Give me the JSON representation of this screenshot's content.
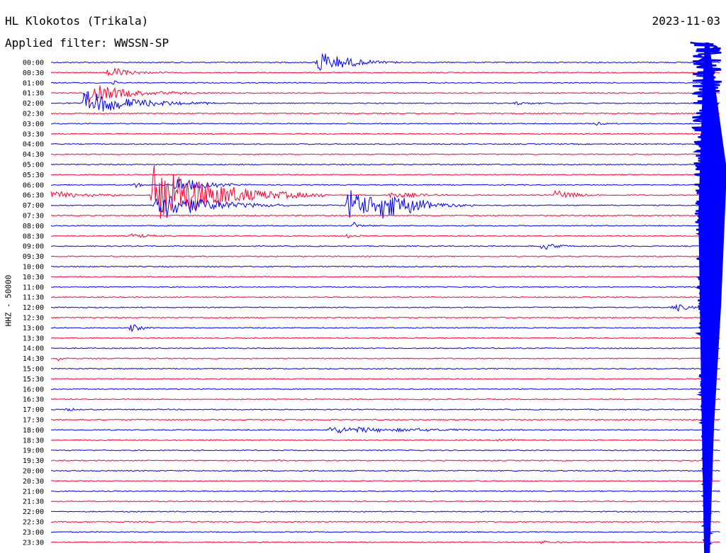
{
  "header": {
    "station": "HL Klokotos (Trikala)",
    "filter": "Applied filter: WWSSN-SP",
    "date": "2023-11-03"
  },
  "colors": {
    "trace_a": "#0000ff",
    "trace_b": "#ff0033",
    "text": "#000000"
  },
  "chart_data": {
    "type": "line",
    "title": "HL Klokotos (Trikala)",
    "subtitle": "Applied filter: WWSSN-SP",
    "ylabel": "HHZ - 50000",
    "xlabel": "",
    "grid": false,
    "legend": "none",
    "row_labels": [
      "00:00",
      "00:30",
      "01:00",
      "01:30",
      "02:00",
      "02:30",
      "03:00",
      "03:30",
      "04:00",
      "04:30",
      "05:00",
      "05:30",
      "06:00",
      "06:30",
      "07:00",
      "07:30",
      "08:00",
      "08:30",
      "09:00",
      "09:30",
      "10:00",
      "10:30",
      "11:00",
      "11:30",
      "12:00",
      "12:30",
      "13:00",
      "13:30",
      "14:00",
      "14:30",
      "15:00",
      "15:30",
      "16:00",
      "16:30",
      "17:00",
      "17:30",
      "18:00",
      "18:30",
      "19:00",
      "19:30",
      "20:00",
      "20:30",
      "21:00",
      "21:30",
      "22:00",
      "22:30",
      "23:00",
      "23:30"
    ],
    "events": [
      {
        "row": 0,
        "minute": 12.0,
        "amp": 18,
        "dur": 1.2
      },
      {
        "row": 1,
        "minute": 2.6,
        "amp": 7,
        "dur": 1.0
      },
      {
        "row": 2,
        "minute": 2.8,
        "amp": 3,
        "dur": 0.4
      },
      {
        "row": 3,
        "minute": 1.6,
        "amp": 14,
        "dur": 1.8
      },
      {
        "row": 4,
        "minute": 1.5,
        "amp": 18,
        "dur": 2.0
      },
      {
        "row": 4,
        "minute": 20.8,
        "amp": 3,
        "dur": 0.6
      },
      {
        "row": 6,
        "minute": 24.4,
        "amp": 3,
        "dur": 0.3
      },
      {
        "row": 12,
        "minute": 3.8,
        "amp": 4,
        "dur": 0.3
      },
      {
        "row": 12,
        "minute": 5.6,
        "amp": 12,
        "dur": 1.2
      },
      {
        "row": 13,
        "minute": 0.0,
        "amp": 6,
        "dur": 1.6
      },
      {
        "row": 13,
        "minute": 4.6,
        "amp": 44,
        "dur": 2.6
      },
      {
        "row": 13,
        "minute": 15.2,
        "amp": 5,
        "dur": 1.2
      },
      {
        "row": 13,
        "minute": 22.6,
        "amp": 7,
        "dur": 0.9
      },
      {
        "row": 14,
        "minute": 4.7,
        "amp": 24,
        "dur": 2.0
      },
      {
        "row": 14,
        "minute": 13.3,
        "amp": 26,
        "dur": 1.2
      },
      {
        "row": 14,
        "minute": 14.8,
        "amp": 24,
        "dur": 1.4
      },
      {
        "row": 16,
        "minute": 13.6,
        "amp": 6,
        "dur": 0.3
      },
      {
        "row": 17,
        "minute": 3.6,
        "amp": 3,
        "dur": 0.9
      },
      {
        "row": 17,
        "minute": 13.3,
        "amp": 3,
        "dur": 0.5
      },
      {
        "row": 18,
        "minute": 22.0,
        "amp": 6,
        "dur": 0.6
      },
      {
        "row": 24,
        "minute": 27.9,
        "amp": 6,
        "dur": 0.8
      },
      {
        "row": 26,
        "minute": 3.6,
        "amp": 5,
        "dur": 0.6
      },
      {
        "row": 29,
        "minute": 0.3,
        "amp": 3,
        "dur": 0.3
      },
      {
        "row": 34,
        "minute": 0.7,
        "amp": 3,
        "dur": 0.4
      },
      {
        "row": 36,
        "minute": 12.4,
        "amp": 5,
        "dur": 3.8
      },
      {
        "row": 37,
        "minute": 20.0,
        "amp": 3,
        "dur": 0.6
      },
      {
        "row": 39,
        "minute": 10.0,
        "amp": 2,
        "dur": 0.5
      },
      {
        "row": 47,
        "minute": 21.9,
        "amp": 3,
        "dur": 1.0
      }
    ],
    "large_event": {
      "row": 0,
      "minute": 29.4,
      "peak_amp": 480,
      "onset_amp": 400
    }
  }
}
